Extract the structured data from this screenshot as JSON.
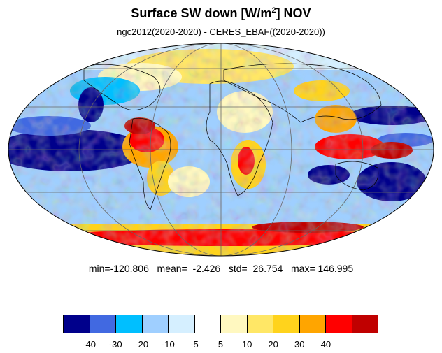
{
  "title": {
    "main": "Surface SW down [W/m",
    "sup": "2",
    "suffix": "]  NOV"
  },
  "subtitle": "ngc2012(2020-2020) - CERES_EBAF((2020-2020))",
  "stats": {
    "text": "min=-120.806   mean=  -2.426   std=  26.754   max= 146.995"
  },
  "colorbar": {
    "colors": [
      "#00008b",
      "#4169e1",
      "#00bfff",
      "#9fcfff",
      "#d5efff",
      "#ffffff",
      "#fff8c0",
      "#ffe766",
      "#ffd31c",
      "#ffa500",
      "#ff0000",
      "#c00000"
    ],
    "tick_labels": [
      "-40",
      "-30",
      "-20",
      "-10",
      "-5",
      "5",
      "10",
      "20",
      "30",
      "40"
    ]
  },
  "map": {
    "projection": "mollweide",
    "grid": true
  }
}
